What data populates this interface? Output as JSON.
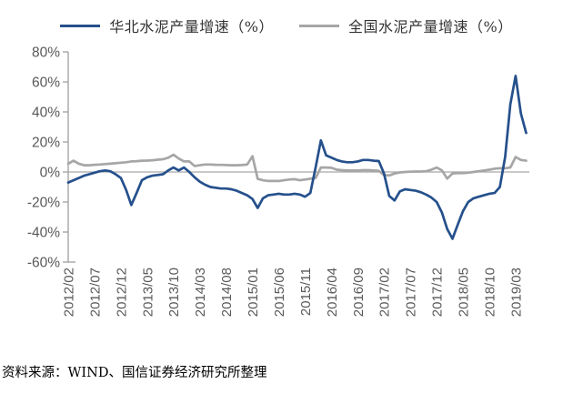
{
  "source_note": "资料来源：WIND、国信证券经济研究所整理",
  "chart_data": {
    "type": "line",
    "title": "",
    "xlabel": "",
    "ylabel": "",
    "legend_position": "top",
    "grid": "zero-line-only",
    "ylim": [
      -60,
      80
    ],
    "y_ticks": [
      80,
      60,
      40,
      20,
      0,
      -20,
      -40,
      -60
    ],
    "y_tick_suffix": "%",
    "x_tick_every": 5,
    "x_tick_labels": [
      "2012/02",
      "2012/07",
      "2012/12",
      "2013/05",
      "2013/10",
      "2014/03",
      "2014/08",
      "2015/01",
      "2015/06",
      "2015/11",
      "2016/04",
      "2016/09",
      "2017/02",
      "2017/07",
      "2017/12",
      "2018/05",
      "2018/10",
      "2019/03"
    ],
    "axis_color": "#A6A6A6",
    "zero_line_color": "#A6A6A6",
    "label_color": "#595959",
    "x": [
      "2012/02",
      "2012/03",
      "2012/04",
      "2012/05",
      "2012/06",
      "2012/07",
      "2012/08",
      "2012/09",
      "2012/10",
      "2012/11",
      "2012/12",
      "2013/01",
      "2013/02",
      "2013/03",
      "2013/04",
      "2013/05",
      "2013/06",
      "2013/07",
      "2013/08",
      "2013/09",
      "2013/10",
      "2013/11",
      "2013/12",
      "2014/01",
      "2014/02",
      "2014/03",
      "2014/04",
      "2014/05",
      "2014/06",
      "2014/07",
      "2014/08",
      "2014/09",
      "2014/10",
      "2014/11",
      "2014/12",
      "2015/01",
      "2015/02",
      "2015/03",
      "2015/04",
      "2015/05",
      "2015/06",
      "2015/07",
      "2015/08",
      "2015/09",
      "2015/10",
      "2015/11",
      "2015/12",
      "2016/01",
      "2016/02",
      "2016/03",
      "2016/04",
      "2016/05",
      "2016/06",
      "2016/07",
      "2016/08",
      "2016/09",
      "2016/10",
      "2016/11",
      "2016/12",
      "2017/01",
      "2017/02",
      "2017/03",
      "2017/04",
      "2017/05",
      "2017/06",
      "2017/07",
      "2017/08",
      "2017/09",
      "2017/10",
      "2017/11",
      "2017/12",
      "2018/01",
      "2018/02",
      "2018/03",
      "2018/04",
      "2018/05",
      "2018/06",
      "2018/07",
      "2018/08",
      "2018/09",
      "2018/10",
      "2018/11",
      "2018/12",
      "2019/01",
      "2019/02",
      "2019/03",
      "2019/04",
      "2019/05"
    ],
    "series": [
      {
        "name": "华北水泥产量增速（%）",
        "color": "#25508C",
        "values": [
          -7,
          -5.5,
          -4,
          -2.5,
          -1.5,
          -0.5,
          0.5,
          1,
          0.5,
          -1.5,
          -4,
          -12,
          -22,
          -14,
          -5.5,
          -3.5,
          -2.5,
          -2,
          -1.5,
          1,
          3,
          1,
          3,
          0,
          -3.5,
          -6.5,
          -8.5,
          -10,
          -10.5,
          -11,
          -11,
          -11.5,
          -12.5,
          -14,
          -15.5,
          -18,
          -24,
          -17.5,
          -15.5,
          -15,
          -14.5,
          -15,
          -15,
          -14.5,
          -15,
          -16.5,
          -14,
          3,
          21,
          11,
          9.5,
          8,
          7,
          6.5,
          6.5,
          7,
          8,
          8,
          7.5,
          7.3,
          -1,
          -16,
          -19,
          -13,
          -11.5,
          -12,
          -12.5,
          -13.5,
          -15,
          -17,
          -20,
          -27,
          -38,
          -44.5,
          -35,
          -26,
          -20,
          -17.5,
          -16.5,
          -15.5,
          -14.5,
          -14,
          -10,
          10,
          45,
          64,
          39,
          26
        ]
      },
      {
        "name": "全国水泥产量增速（%）",
        "color": "#A6A6A6",
        "values": [
          5.5,
          7.5,
          5.5,
          4.5,
          4.5,
          4.8,
          5,
          5.3,
          5.5,
          5.8,
          6.2,
          6.5,
          7,
          7.2,
          7.5,
          7.6,
          7.8,
          8.2,
          8.5,
          9.5,
          11.5,
          9,
          7,
          7,
          4,
          4.5,
          5,
          5,
          4.8,
          4.7,
          4.6,
          4.5,
          4.5,
          4.6,
          5,
          10.5,
          -4.6,
          -5.5,
          -6,
          -6,
          -6,
          -5.5,
          -5,
          -4.8,
          -5.5,
          -5,
          -4.5,
          -4,
          3,
          3,
          2.8,
          1.5,
          1.2,
          1,
          1,
          1,
          1.2,
          1.2,
          1,
          0.8,
          -2,
          -2.3,
          -1,
          -0.3,
          0,
          0.2,
          0.3,
          0.3,
          0.5,
          1.5,
          3,
          1,
          -4.4,
          -1,
          -0.8,
          -0.8,
          -0.5,
          0,
          0.5,
          1,
          1.5,
          2.2,
          2.5,
          2.5,
          3,
          10,
          8,
          7.5
        ]
      }
    ]
  }
}
